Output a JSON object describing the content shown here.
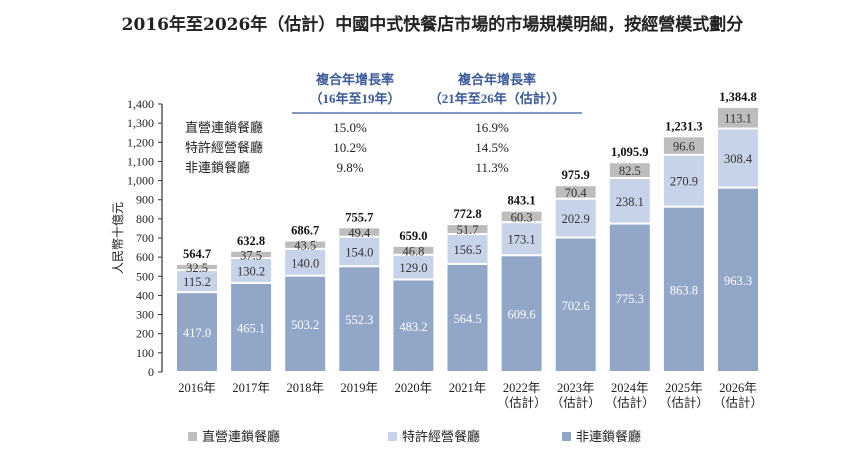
{
  "chart_data": {
    "type": "bar",
    "stacked": true,
    "title": "2016年至2026年（估計）中國中式快餐店市場的市場規模明細，按經營模式劃分",
    "ylabel": "人民幣十億元",
    "ylim": [
      0,
      1400
    ],
    "yticks": [
      "0",
      "100",
      "200",
      "300",
      "400",
      "500",
      "600",
      "700",
      "800",
      "900",
      "1,000",
      "1,100",
      "1,200",
      "1,300",
      "1,400"
    ],
    "grid": false,
    "legend_position": "bottom",
    "categories": [
      [
        "2016年"
      ],
      [
        "2017年"
      ],
      [
        "2018年"
      ],
      [
        "2019年"
      ],
      [
        "2020年"
      ],
      [
        "2021年"
      ],
      [
        "2022年",
        "（估計）"
      ],
      [
        "2023年",
        "（估計）"
      ],
      [
        "2024年",
        "（估計）"
      ],
      [
        "2025年",
        "（估計）"
      ],
      [
        "2026年",
        "（估計）"
      ]
    ],
    "series": [
      {
        "name": "非連鎖餐廳",
        "color": "#92a6c8",
        "values": [
          417.0,
          465.1,
          503.2,
          552.3,
          483.2,
          564.5,
          609.6,
          702.6,
          775.3,
          863.8,
          963.3
        ]
      },
      {
        "name": "特許經營餐廳",
        "color": "#c7d3e8",
        "values": [
          115.2,
          130.2,
          140.0,
          154.0,
          129.0,
          156.5,
          173.1,
          202.9,
          238.1,
          270.9,
          308.4
        ]
      },
      {
        "name": "直營連鎖餐廳",
        "color": "#bdbdbd",
        "values": [
          32.5,
          37.5,
          43.5,
          49.4,
          46.8,
          51.7,
          60.3,
          70.4,
          82.5,
          96.6,
          113.1
        ]
      }
    ],
    "totals": [
      "564.7",
      "632.8",
      "686.7",
      "755.7",
      "659.0",
      "772.8",
      "843.1",
      "975.9",
      "1,095.9",
      "1,231.3",
      "1,384.8"
    ],
    "cagr_table": {
      "headers": [
        [
          "複合年增長率",
          "（16年至19年）"
        ],
        [
          "複合年增長率",
          "（21年至26年（估計））"
        ]
      ],
      "rows": [
        {
          "label": "直營連鎖餐廳",
          "values": [
            "15.0%",
            "16.9%"
          ]
        },
        {
          "label": "特許經營餐廳",
          "values": [
            "10.2%",
            "14.5%"
          ]
        },
        {
          "label": "非連鎖餐廳",
          "values": [
            "9.8%",
            "11.3%"
          ]
        }
      ],
      "accent_color": "#3a5a9a"
    }
  }
}
